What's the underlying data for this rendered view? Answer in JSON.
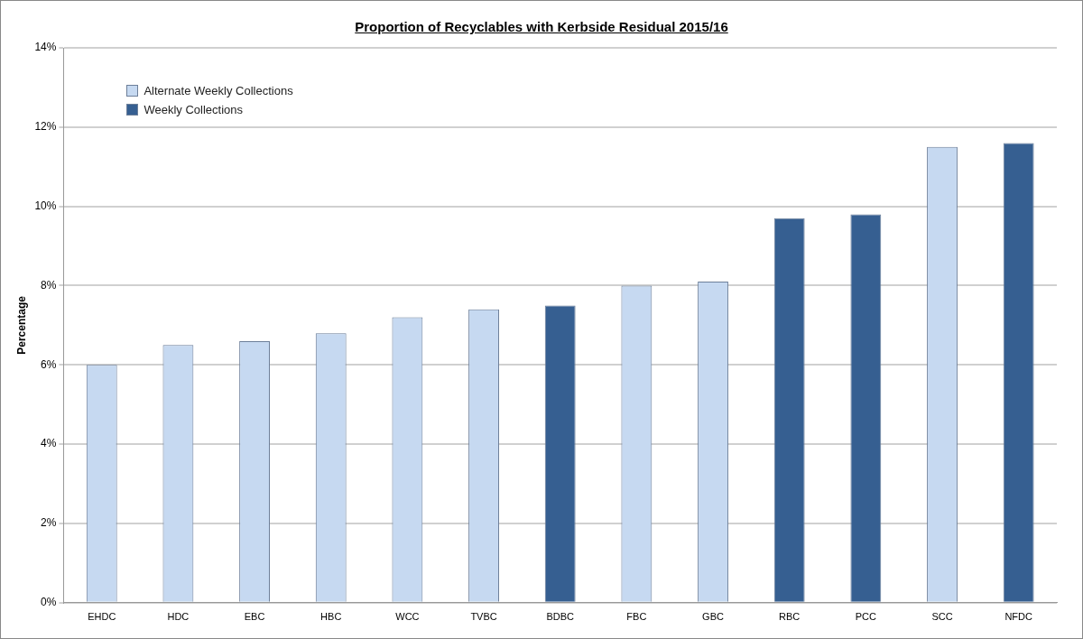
{
  "chart_data": {
    "type": "bar",
    "title": "Proportion of Recyclables with Kerbside Residual 2015/16",
    "ylabel": "Percentage",
    "categories": [
      "EHDC",
      "HDC",
      "EBC",
      "HBC",
      "WCC",
      "TVBC",
      "BDBC",
      "FBC",
      "GBC",
      "RBC",
      "PCC",
      "SCC",
      "NFDC"
    ],
    "series": [
      {
        "name": "Alternate Weekly Collections",
        "color": "#c6d9f1",
        "values": [
          6.0,
          6.5,
          6.6,
          6.8,
          7.2,
          7.4,
          null,
          8.0,
          8.1,
          null,
          null,
          11.5,
          null
        ]
      },
      {
        "name": "Weekly Collections",
        "color": "#365f91",
        "values": [
          null,
          null,
          null,
          null,
          null,
          null,
          7.5,
          null,
          null,
          9.7,
          9.8,
          null,
          11.6
        ]
      }
    ],
    "ylim": [
      0,
      14
    ],
    "yticks": [
      {
        "value": 0,
        "label": "0%"
      },
      {
        "value": 2,
        "label": "2%"
      },
      {
        "value": 4,
        "label": "4%"
      },
      {
        "value": 6,
        "label": "6%"
      },
      {
        "value": 8,
        "label": "8%"
      },
      {
        "value": 10,
        "label": "10%"
      },
      {
        "value": 12,
        "label": "12%"
      },
      {
        "value": 14,
        "label": "14%"
      }
    ],
    "grid": "y",
    "legend": "top left"
  }
}
